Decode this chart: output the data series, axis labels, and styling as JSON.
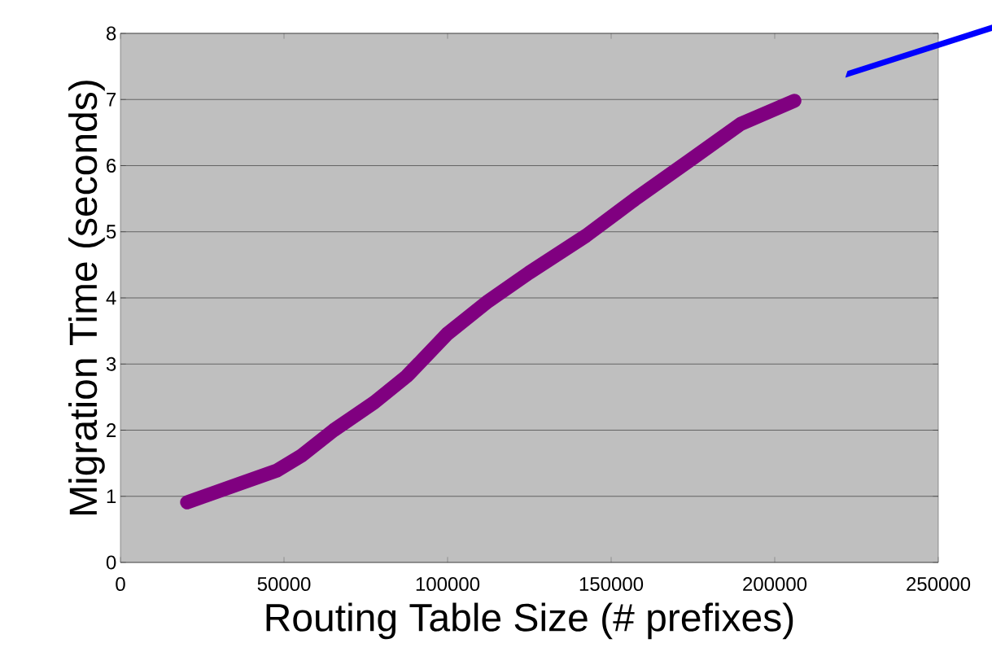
{
  "chart_data": {
    "type": "line",
    "xlabel": "Routing Table Size (# prefixes)",
    "ylabel": "Migration Time (seconds)",
    "x": [
      20400,
      35300,
      47800,
      55200,
      65200,
      77600,
      87600,
      100000,
      112400,
      124900,
      142300,
      157200,
      174600,
      189600,
      206000
    ],
    "series": [
      {
        "color": "#800080",
        "values": [
          0.91,
          1.17,
          1.39,
          1.61,
          2.0,
          2.42,
          2.82,
          3.46,
          3.95,
          4.38,
          4.94,
          5.49,
          6.1,
          6.63,
          6.98
        ]
      }
    ],
    "xlim": [
      0,
      250000
    ],
    "xticks": [
      0,
      50000,
      100000,
      150000,
      200000,
      250000
    ],
    "ylim": [
      0,
      8
    ],
    "yticks": [
      0,
      1,
      2,
      3,
      4,
      5,
      6,
      7,
      8
    ],
    "grid": "y",
    "marker": "none",
    "line_style": "solid"
  }
}
